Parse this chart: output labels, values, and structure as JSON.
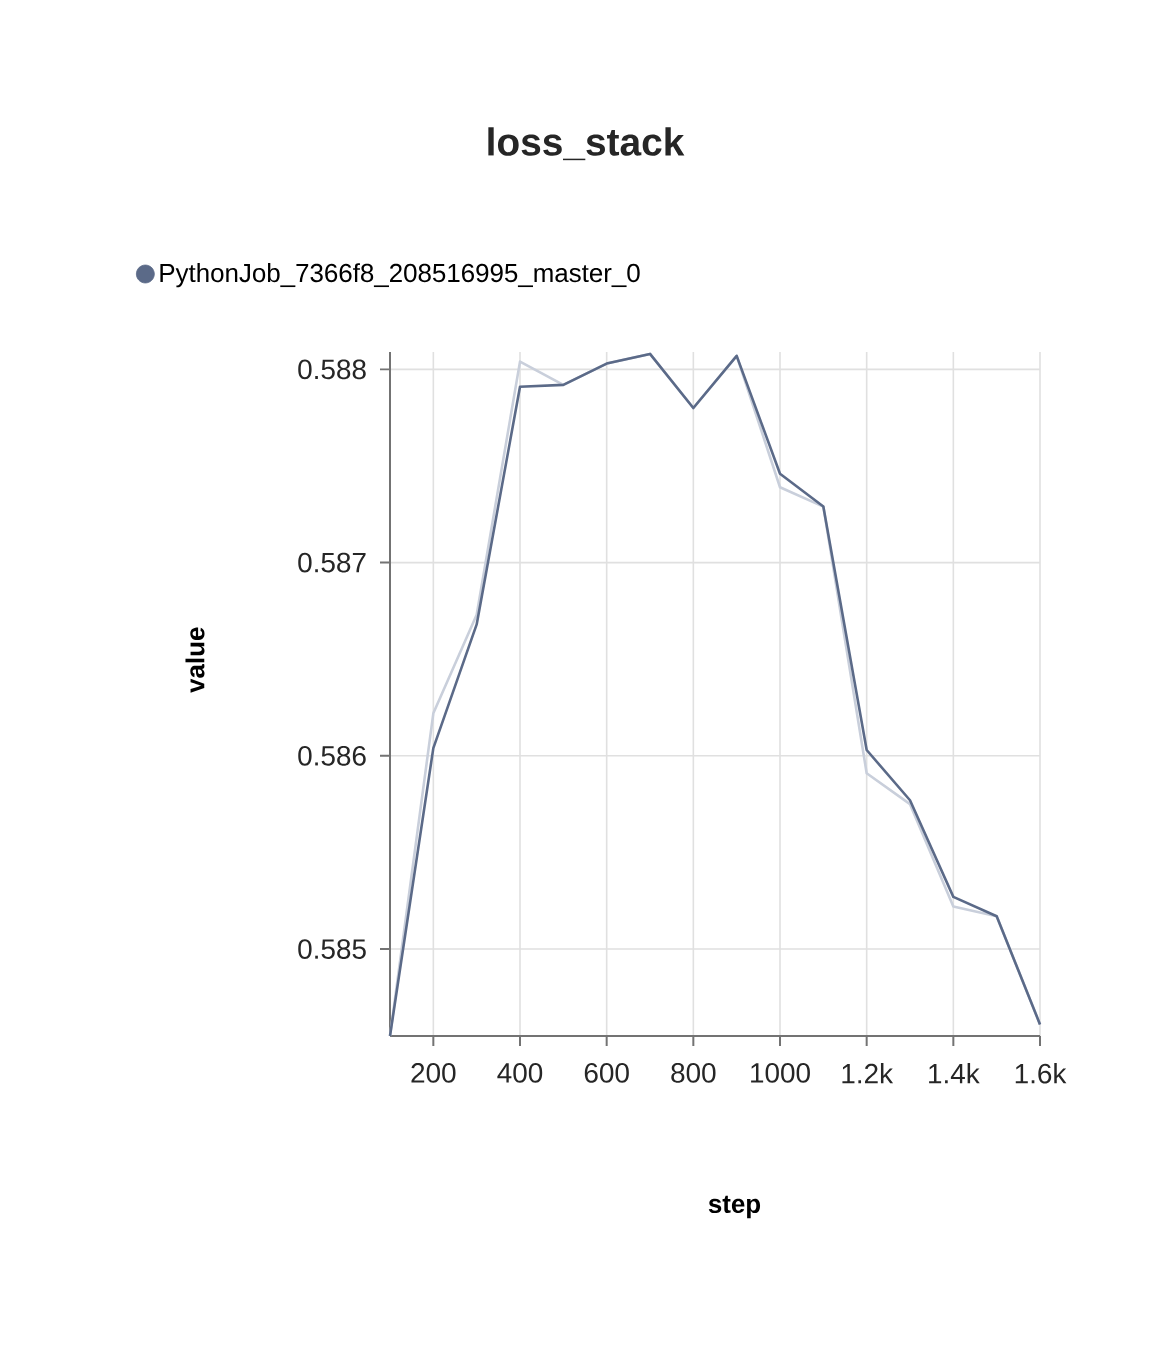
{
  "chart_data": {
    "type": "line",
    "title": "loss_stack",
    "xlabel": "step",
    "ylabel": "value",
    "x": [
      100,
      200,
      300,
      400,
      500,
      600,
      700,
      800,
      900,
      1000,
      1100,
      1200,
      1300,
      1400,
      1500,
      1600
    ],
    "series": [
      {
        "color": "#c9cfdb",
        "values": [
          0.58455,
          0.58622,
          0.58673,
          0.58804,
          0.58792,
          0.58803,
          0.58808,
          0.5878,
          0.58807,
          0.58739,
          0.58729,
          0.58591,
          0.58575,
          0.58522,
          0.58517,
          0.58461
        ]
      },
      {
        "name": "PythonJob_7366f8_208516995_master_0",
        "color": "#5b6a88",
        "values": [
          0.58455,
          0.58604,
          0.58668,
          0.58791,
          0.58792,
          0.58803,
          0.58808,
          0.5878,
          0.58807,
          0.58746,
          0.58729,
          0.58603,
          0.58577,
          0.58527,
          0.58517,
          0.58461
        ]
      }
    ],
    "xlim": [
      100,
      1600
    ],
    "ylim": [
      0.58455,
      0.58809
    ],
    "xticks": [
      200,
      400,
      600,
      800,
      1000,
      {
        "value": 1200,
        "label": "1.2k"
      },
      {
        "value": 1400,
        "label": "1.4k"
      },
      {
        "value": 1600,
        "label": "1.6k"
      }
    ],
    "yticks": [
      0.585,
      0.586,
      0.587,
      0.588
    ],
    "grid": true,
    "legend": "top left",
    "marker": "none",
    "line_style": "solid"
  }
}
